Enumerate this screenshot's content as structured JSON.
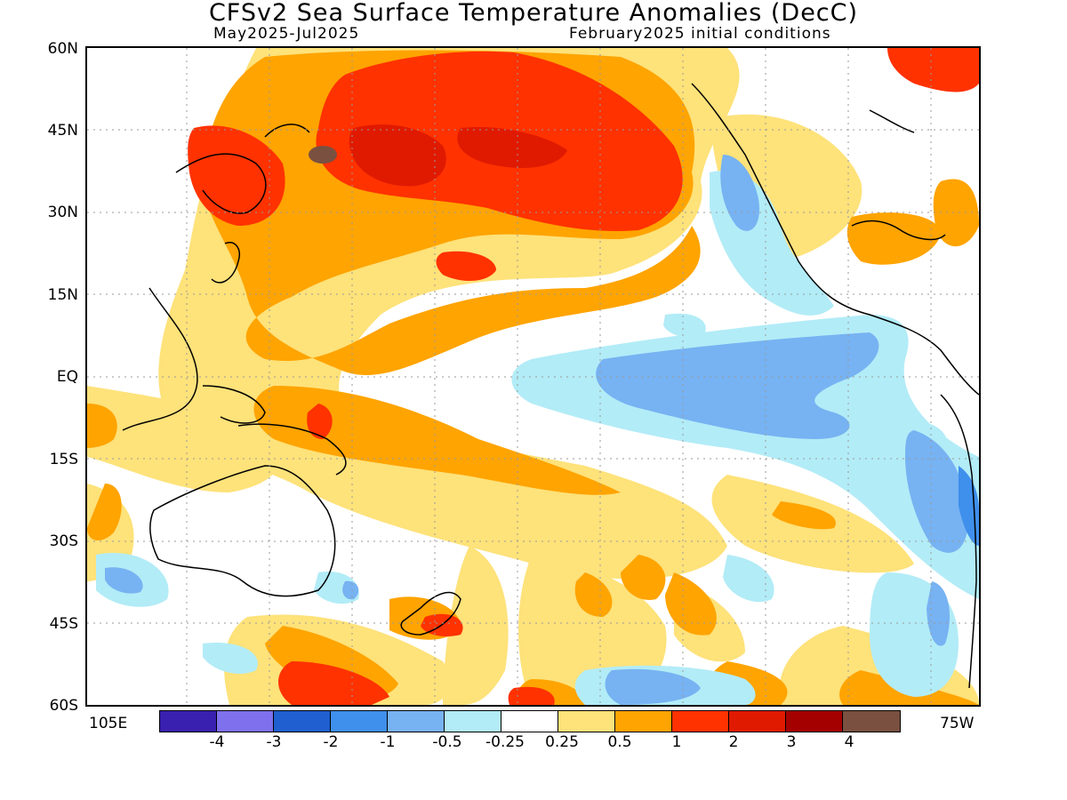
{
  "title": "CFSv2 Sea Surface Temperature Anomalies (DecC)",
  "subtitle_left": "May2025-Jul2025",
  "subtitle_right": "February2025 initial conditions",
  "lat_labels": [
    "60N",
    "45N",
    "30N",
    "15N",
    "EQ",
    "15S",
    "30S",
    "45S",
    "60S"
  ],
  "lon_labels": {
    "left": "105E",
    "right": "75W"
  },
  "colorbar": {
    "colors": [
      "#3a20b0",
      "#7f70ee",
      "#1f5fcf",
      "#3f8fec",
      "#77b2f2",
      "#b2ecf7",
      "#ffffff",
      "#fee27a",
      "#ffa400",
      "#ff3200",
      "#e01a00",
      "#a50000",
      "#7a5040"
    ],
    "labels": [
      "-4",
      "-3",
      "-2",
      "-1",
      "-0.5",
      "-0.25",
      "0.25",
      "0.5",
      "1",
      "2",
      "3",
      "4"
    ]
  },
  "field_colors": {
    "warm_weak": "#fee27a",
    "warm_mod": "#ffa400",
    "warm_strong": "#ff3200",
    "warm_vstrong": "#e01a00",
    "warm_extreme": "#7a5040",
    "cool_weak": "#b2ecf7",
    "cool_mod": "#77b2f2",
    "cool_strong": "#3f8fec"
  }
}
